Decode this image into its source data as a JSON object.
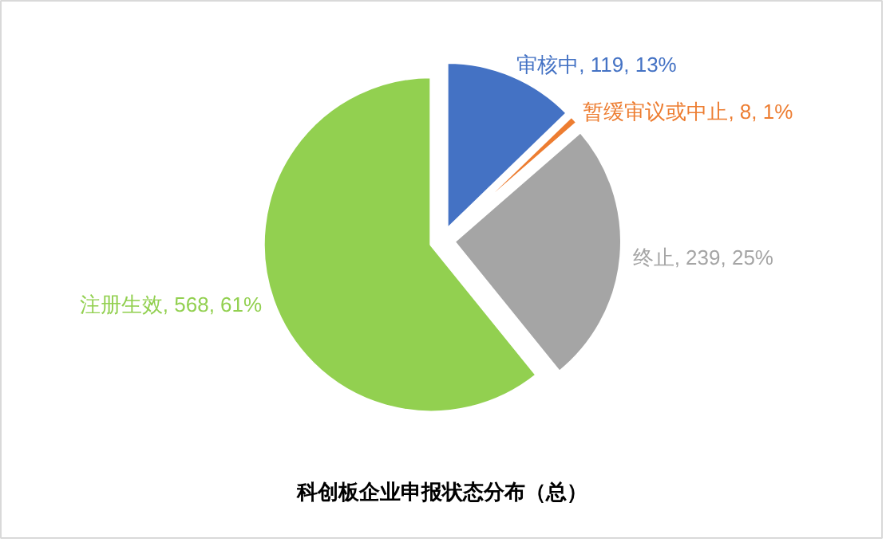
{
  "chart_data": {
    "type": "pie",
    "title": "科创板企业申报状态分布（总）",
    "categories": [
      "审核中",
      "暂缓审议或中止",
      "终止",
      "注册生效"
    ],
    "values": [
      119,
      8,
      239,
      568
    ],
    "value_labels": [
      "119, 13%",
      "8, 1%",
      "239, 25%",
      "568, 61%"
    ],
    "colors": [
      "#4472c4",
      "#ed7d31",
      "#a5a5a5",
      "#92d050"
    ]
  }
}
